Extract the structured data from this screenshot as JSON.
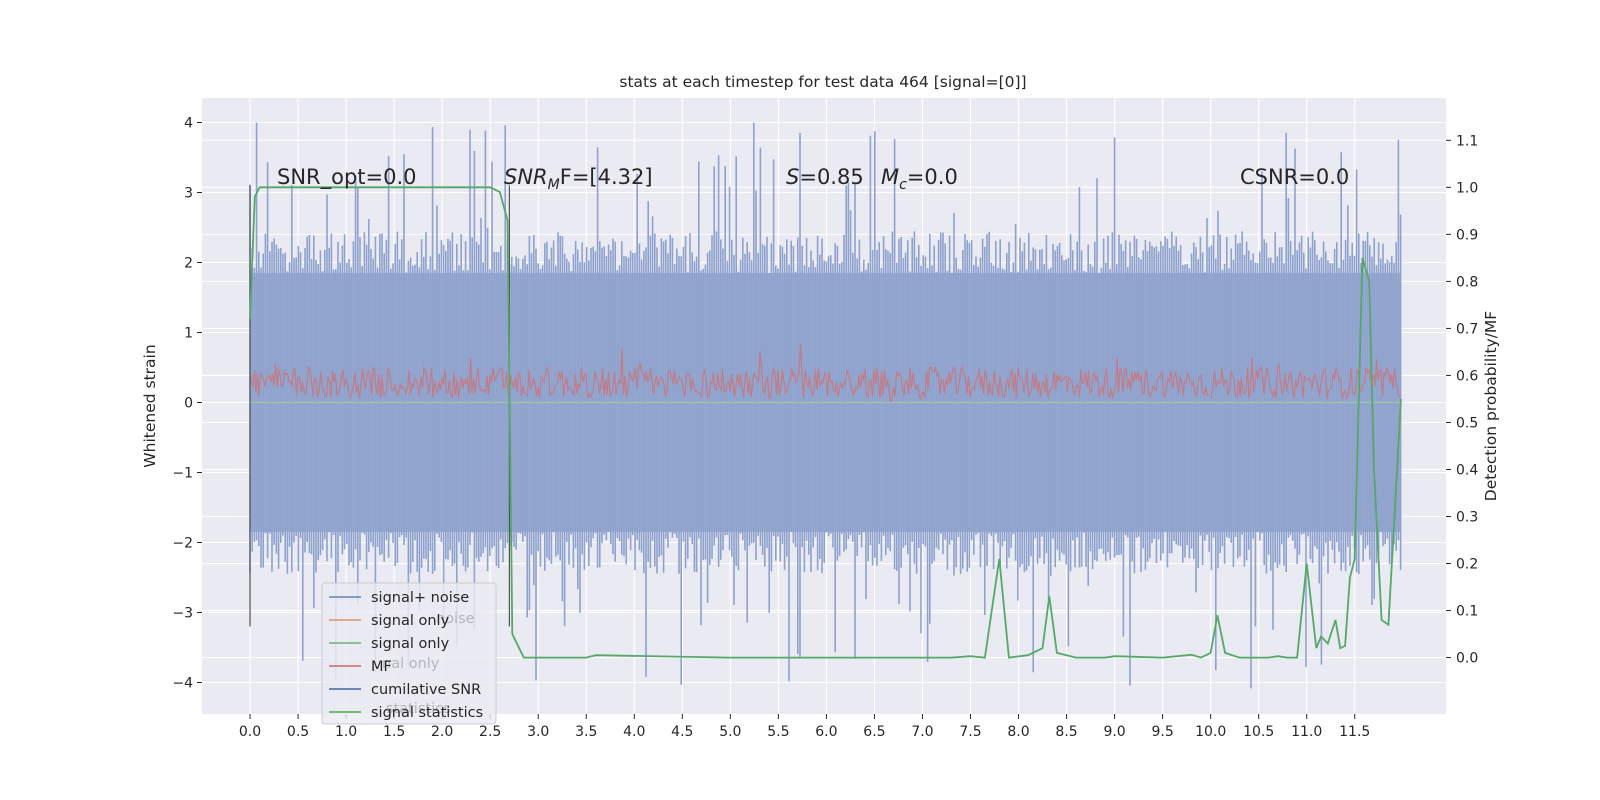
{
  "chart_data": {
    "type": "line",
    "title": "stats at each timestep for test data 464 [signal=[0]]",
    "ylabel": "Whitened strain",
    "y2label": "Detection probability/MF",
    "xlabel": "",
    "xlim": [
      -0.5,
      12.45
    ],
    "ylim": [
      -4.45,
      4.35
    ],
    "y2lim": [
      -0.12,
      1.19
    ],
    "xticks": [
      "0.0",
      "0.5",
      "1.0",
      "1.5",
      "2.0",
      "2.5",
      "3.0",
      "3.5",
      "4.0",
      "4.5",
      "5.0",
      "5.5",
      "6.0",
      "6.5",
      "7.0",
      "7.5",
      "8.0",
      "8.5",
      "9.0",
      "9.5",
      "10.0",
      "10.5",
      "11.0",
      "11.5"
    ],
    "yticks": [
      "4",
      "3",
      "2",
      "1",
      "0",
      "−1",
      "−2",
      "−3",
      "−4"
    ],
    "y2ticks": [
      "1.1",
      "1.0",
      "0.9",
      "0.8",
      "0.7",
      "0.6",
      "0.5",
      "0.4",
      "0.3",
      "0.2",
      "0.1",
      "0.0"
    ],
    "grid": true,
    "legend_placement": "lower-left",
    "annotations": {
      "snr_opt": "SNR_opt=0.0",
      "snr_mf_main": "SNR",
      "snr_mf_sub": "M",
      "snr_mf_rest": "F=[4.32]",
      "s_main": "S",
      "s_rest": "=0.85",
      "mc_main": "M",
      "mc_sub": "c",
      "mc_rest": "=0.0",
      "csnr": "CSNR=0.0"
    },
    "markers": {
      "start_line_x": 0.0,
      "mf_line_x": 2.7,
      "y_range": [
        -3.2,
        3.1
      ]
    },
    "noise": {
      "x_range": [
        0.0,
        11.98
      ],
      "band_low": -1.85,
      "band_high": 1.85,
      "peak_max": 4.0,
      "peak_min": -4.1
    },
    "mf": {
      "x_range": [
        0.0,
        11.98
      ],
      "center": 0.28,
      "amplitude": 0.45
    },
    "detection_probability": {
      "x": [
        0.0,
        0.05,
        0.1,
        0.5,
        1.0,
        1.5,
        2.0,
        2.5,
        2.6,
        2.68,
        2.73,
        2.85,
        3.2,
        3.5,
        3.6,
        5.0,
        7.3,
        7.5,
        7.65,
        7.8,
        7.9,
        8.1,
        8.25,
        8.32,
        8.4,
        8.6,
        8.9,
        9.0,
        9.5,
        9.8,
        9.9,
        10.0,
        10.07,
        10.15,
        10.3,
        10.6,
        10.7,
        10.8,
        10.9,
        11.0,
        11.1,
        11.15,
        11.22,
        11.3,
        11.35,
        11.4,
        11.45,
        11.5,
        11.58,
        11.65,
        11.7,
        11.78,
        11.85,
        11.9,
        11.98
      ],
      "values": [
        0.72,
        0.98,
        1.0,
        1.0,
        1.0,
        1.0,
        1.0,
        1.0,
        0.99,
        0.93,
        0.05,
        0.0,
        0.0,
        0.0,
        0.005,
        0.0,
        0.0,
        0.003,
        0.0,
        0.21,
        0.0,
        0.005,
        0.02,
        0.13,
        0.01,
        0.0,
        0.0,
        0.003,
        0.0,
        0.006,
        0.0,
        0.01,
        0.09,
        0.01,
        0.0,
        0.0,
        0.003,
        0.0,
        0.0,
        0.2,
        0.02,
        0.045,
        0.03,
        0.08,
        0.02,
        0.025,
        0.17,
        0.21,
        0.85,
        0.8,
        0.4,
        0.08,
        0.07,
        0.25,
        0.55
      ]
    },
    "series": [
      {
        "name": "signal+ noise",
        "color": "#4c72b0"
      },
      {
        "name": "signal only",
        "color": "#dd8452"
      },
      {
        "name": "signal only",
        "color": "#55a868"
      },
      {
        "name": "MF",
        "color": "#c44e52"
      },
      {
        "name": "cumilative SNR",
        "color": "#1f4e9e"
      },
      {
        "name": "signal statistics",
        "color": "#2ca02c"
      }
    ],
    "legend_ghost_labels": [
      "noise",
      "nal only",
      "statistics"
    ]
  }
}
